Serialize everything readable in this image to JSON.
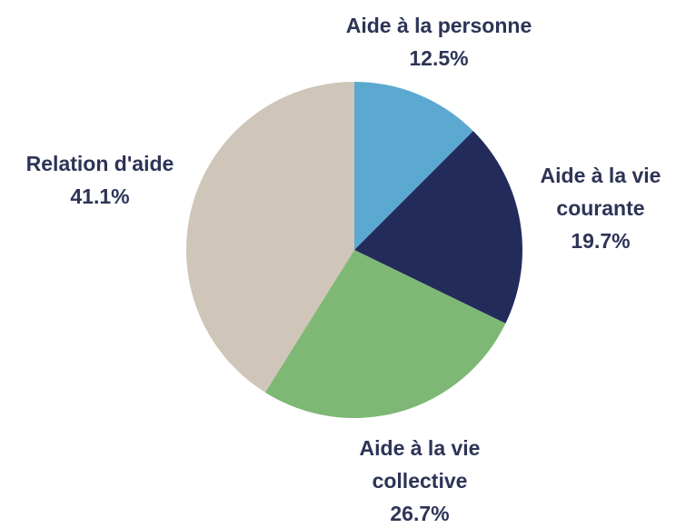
{
  "chart_data": {
    "type": "pie",
    "categories": [
      "Aide à la personne",
      "Aide à la vie courante",
      "Aide à la vie collective",
      "Relation d'aide"
    ],
    "values": [
      12.5,
      19.7,
      26.7,
      41.1
    ],
    "value_labels": [
      "12.5%",
      "19.7%",
      "26.7%",
      "41.1%"
    ],
    "colors": [
      "#5ba8d0",
      "#232b5a",
      "#7db874",
      "#cfc5b8"
    ]
  }
}
